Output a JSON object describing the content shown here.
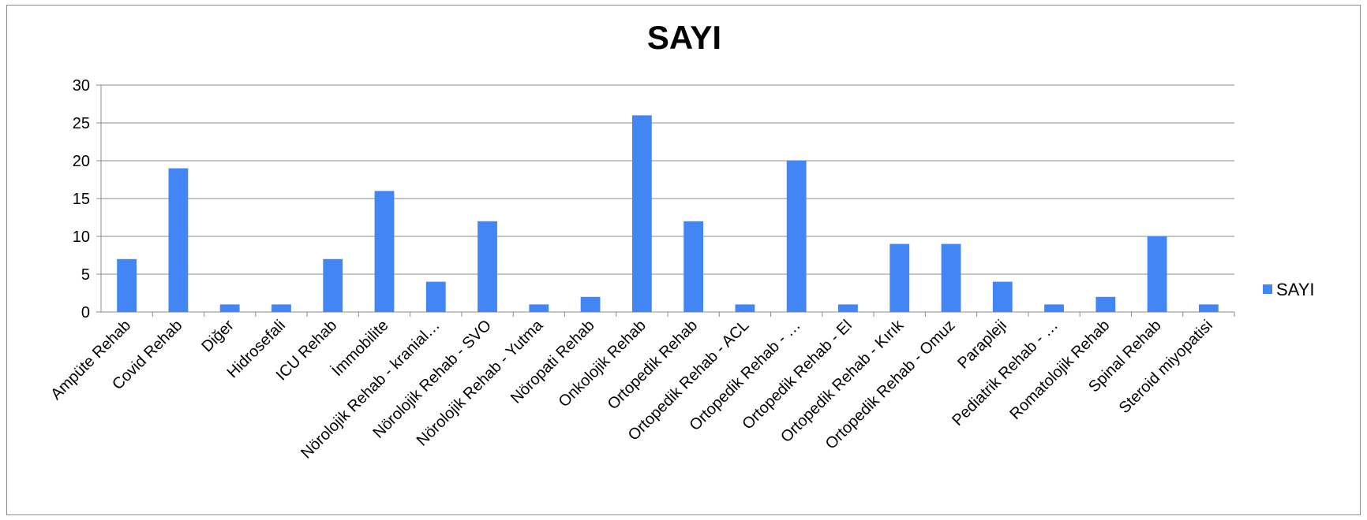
{
  "chart_data": {
    "type": "bar",
    "title": "SAYI",
    "xlabel": "",
    "ylabel": "",
    "ylim": [
      0,
      30
    ],
    "yticks": [
      0,
      5,
      10,
      15,
      20,
      25,
      30
    ],
    "grid": true,
    "legend_position": "right",
    "categories": [
      "Ampüte Rehab",
      "Covid Rehab",
      "Diğer",
      "Hidrosefali",
      "ICU Rehab",
      "İmmobilite",
      "Nörolojik Rehab - kranial…",
      "Nörolojik Rehab - SVO",
      "Nörolojik Rehab - Yutma",
      "Nöropati Rehab",
      "Onkolojik Rehab",
      "Ortopedik Rehab",
      "Ortopedik Rehab - ACL",
      "Ortopedik Rehab - …",
      "Ortopedik Rehab - El",
      "Ortopedik Rehab - Kırık",
      "Ortopedik Rehab - Omuz",
      "Parapleji",
      "Pediatrik Rehab - …",
      "Romatolojik Rehab",
      "Spinal Rehab",
      "Steroid miyopatisi"
    ],
    "series": [
      {
        "name": "SAYI",
        "color": "#4285f4",
        "values": [
          7,
          19,
          1,
          1,
          7,
          16,
          4,
          12,
          1,
          2,
          26,
          12,
          1,
          20,
          1,
          9,
          9,
          4,
          1,
          2,
          10,
          1
        ]
      }
    ]
  }
}
